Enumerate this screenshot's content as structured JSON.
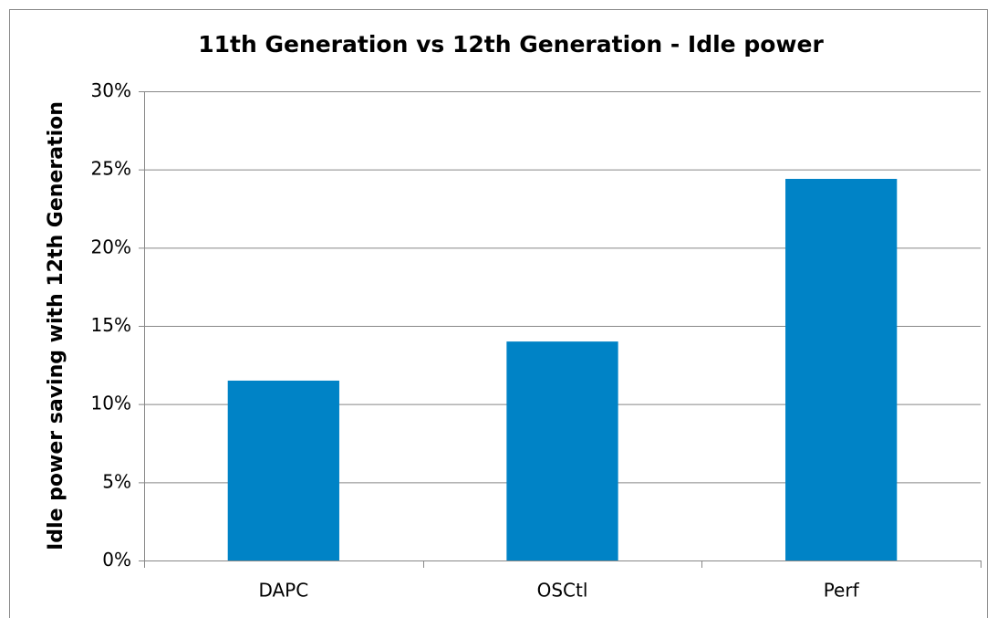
{
  "chart_data": {
    "type": "bar",
    "title": "11th Generation vs 12th Generation - Idle power",
    "y_label": "Idle power saving with 12th Generation",
    "categories": [
      "DAPC",
      "OSCtl",
      "Perf"
    ],
    "values": [
      11.5,
      14,
      24.4
    ],
    "color": "#0083c6",
    "ylim": [
      0,
      30
    ],
    "yticks": [
      {
        "value": 0,
        "label": "0%"
      },
      {
        "value": 5,
        "label": "5%"
      },
      {
        "value": 10,
        "label": "10%"
      },
      {
        "value": 15,
        "label": "15%"
      },
      {
        "value": 20,
        "label": "20%"
      },
      {
        "value": 25,
        "label": "25%"
      },
      {
        "value": 30,
        "label": "30%"
      }
    ],
    "grid": true
  }
}
